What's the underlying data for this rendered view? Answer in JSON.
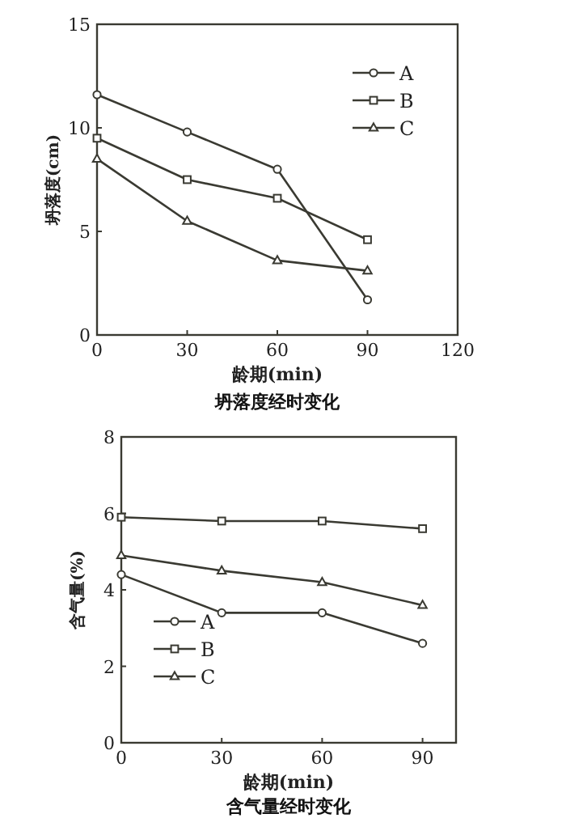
{
  "chart_data": [
    {
      "type": "line",
      "title": "坍落度经时变化",
      "xlabel": "龄期(min)",
      "ylabel": "坍落度(cm)",
      "x": [
        0,
        30,
        60,
        90
      ],
      "xlim": [
        0,
        120
      ],
      "xticks": [
        0,
        30,
        60,
        90,
        120
      ],
      "ylim": [
        0,
        15
      ],
      "yticks": [
        0,
        5,
        10,
        15
      ],
      "legend": "top right",
      "grid": false,
      "series": [
        {
          "name": "A",
          "color": "#3a3a32",
          "marker": "circle",
          "values": [
            11.6,
            9.8,
            8.0,
            1.7
          ]
        },
        {
          "name": "B",
          "color": "#3a3a32",
          "marker": "square",
          "values": [
            9.5,
            7.5,
            6.6,
            4.6
          ]
        },
        {
          "name": "C",
          "color": "#3a3a32",
          "marker": "triangle",
          "values": [
            8.5,
            5.5,
            3.6,
            3.1
          ]
        }
      ]
    },
    {
      "type": "line",
      "title": "含气量经时变化",
      "xlabel": "龄期(min)",
      "ylabel": "含气量(%)",
      "x": [
        0,
        30,
        60,
        90
      ],
      "xlim": [
        0,
        100
      ],
      "xticks": [
        0,
        30,
        60,
        90
      ],
      "ylim": [
        0,
        8
      ],
      "yticks": [
        0,
        2,
        4,
        6,
        8
      ],
      "legend": "bottom left",
      "grid": false,
      "series": [
        {
          "name": "A",
          "color": "#3a3a32",
          "marker": "circle",
          "values": [
            4.4,
            3.4,
            3.4,
            2.6
          ]
        },
        {
          "name": "B",
          "color": "#3a3a32",
          "marker": "square",
          "values": [
            5.9,
            5.8,
            5.8,
            5.6
          ]
        },
        {
          "name": "C",
          "color": "#3a3a32",
          "marker": "triangle",
          "values": [
            4.9,
            4.5,
            4.2,
            3.6
          ]
        }
      ]
    }
  ]
}
